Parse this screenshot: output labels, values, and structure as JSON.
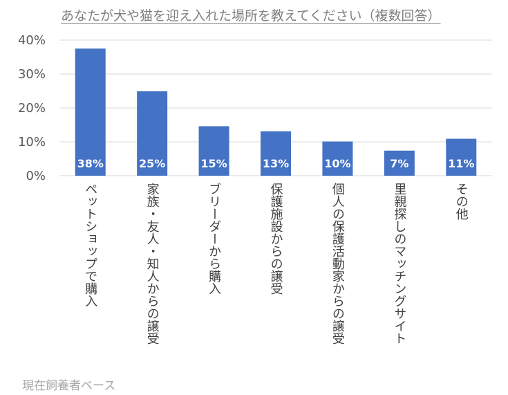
{
  "chart_data": {
    "type": "bar",
    "title": "あなたが犬や猫を迎え入れた場所を教えてください（複数回答）",
    "footnote": "現在飼養者ベース",
    "categories": [
      "ペットショップで購入",
      "家族・友人・知人からの譲受",
      "ブリーダーから購入",
      "保護施設からの譲受",
      "個人の保護活動家からの譲受",
      "里親探しのマッチングサイト",
      "その他"
    ],
    "values": [
      37.5,
      24.9,
      14.6,
      13.1,
      10.1,
      7.4,
      10.9
    ],
    "data_labels": [
      "38%",
      "25%",
      "15%",
      "13%",
      "10%",
      "7%",
      "11%"
    ],
    "yticks": [
      "0%",
      "10%",
      "20%",
      "30%",
      "40%"
    ],
    "ylim": [
      0,
      40
    ],
    "grid": true,
    "bar_color": "#4472c4",
    "grid_color": "#d9d9d9"
  }
}
